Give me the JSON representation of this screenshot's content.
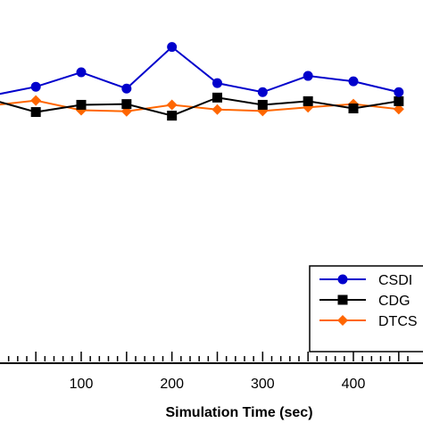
{
  "chart_data": {
    "type": "line",
    "title": "",
    "xlabel": "Simulation Time (sec)",
    "ylabel": "",
    "xlim": [
      -10,
      460
    ],
    "ylim": [
      0,
      1
    ],
    "x_ticks": [
      100,
      200,
      300,
      400
    ],
    "grid": false,
    "legend_position": "bottom-right",
    "x": [
      0,
      50,
      100,
      150,
      200,
      250,
      300,
      350,
      400,
      450
    ],
    "series": [
      {
        "name": "CSDI",
        "color": "#0000cc",
        "marker": "circle",
        "values": [
          0.735,
          0.76,
          0.8,
          0.755,
          0.87,
          0.77,
          0.745,
          0.79,
          0.775,
          0.745
        ]
      },
      {
        "name": "CDG",
        "color": "#000000",
        "marker": "square",
        "values": [
          0.725,
          0.69,
          0.71,
          0.712,
          0.68,
          0.73,
          0.71,
          0.72,
          0.7,
          0.72
        ]
      },
      {
        "name": "DTCS",
        "color": "#ff6600",
        "marker": "diamond",
        "values": [
          0.708,
          0.722,
          0.695,
          0.692,
          0.71,
          0.697,
          0.693,
          0.703,
          0.712,
          0.698
        ]
      }
    ]
  }
}
